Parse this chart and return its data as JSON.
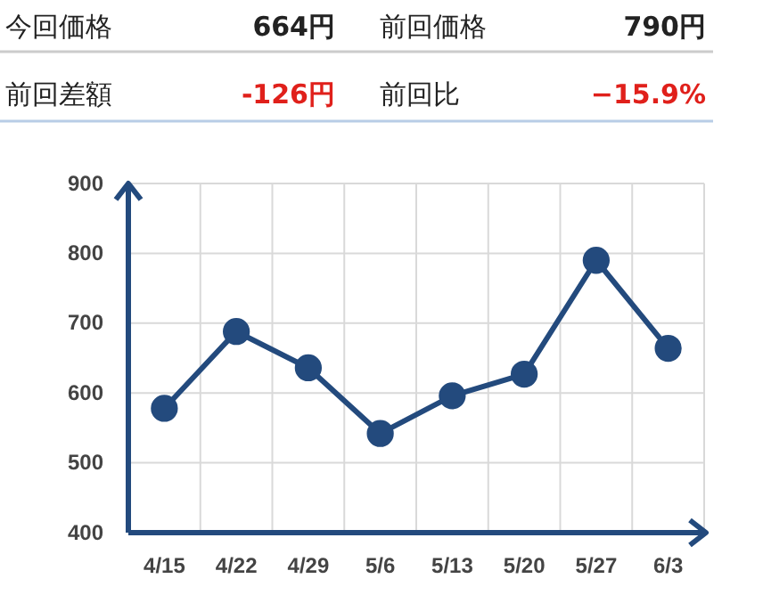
{
  "chart_data": {
    "type": "line",
    "annotations": [
      "今回価格",
      "664円",
      "前回価格",
      "790円",
      "前回差額",
      "-126円",
      "前回比",
      "−15.9%"
    ],
    "categories": [
      "4/15",
      "4/22",
      "4/29",
      "5/6",
      "5/13",
      "5/20",
      "5/27",
      "6/3"
    ],
    "series": [
      {
        "color": "#234a7d",
        "values": [
          578,
          688,
          636,
          542,
          596,
          627,
          790,
          664
        ]
      }
    ],
    "ylim": [
      400,
      900
    ],
    "yticks": [
      400,
      500,
      600,
      700,
      800,
      900
    ],
    "grid": true,
    "marker": "circle",
    "line_style": "solid"
  }
}
